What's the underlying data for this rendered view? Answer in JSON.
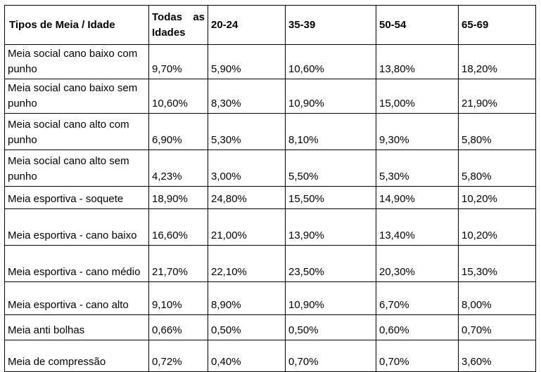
{
  "table": {
    "headers": {
      "type": "Tipos de Meia / Idade",
      "all_word1": "Todas",
      "all_word2": "as",
      "all_word3": "Idades",
      "a20": "20-24",
      "a35": "35-39",
      "a50": "50-54",
      "a65": "65-69"
    },
    "rows": [
      {
        "label": "Meia social cano baixo com punho",
        "all": "9,70%",
        "a20": "5,90%",
        "a35": "10,60%",
        "a50": "13,80%",
        "a65": "18,20%"
      },
      {
        "label": "Meia social cano baixo sem punho",
        "all": "10,60%",
        "a20": "8,30%",
        "a35": "10,90%",
        "a50": "15,00%",
        "a65": "21,90%"
      },
      {
        "label": "Meia social cano alto com punho",
        "all": "6,90%",
        "a20": "5,30%",
        "a35": "8,10%",
        "a50": "9,30%",
        "a65": "5,80%"
      },
      {
        "label": "Meia social cano alto sem punho",
        "all": "4,23%",
        "a20": "3,00%",
        "a35": "5,50%",
        "a50": "5,30%",
        "a65": "5,80%"
      },
      {
        "label": "Meia esportiva - soquete",
        "all": "18,90%",
        "a20": "24,80%",
        "a35": "15,50%",
        "a50": "14,90%",
        "a65": "10,20%"
      },
      {
        "label": "Meia esportiva - cano baixo",
        "all": "16,60%",
        "a20": "21,00%",
        "a35": "13,90%",
        "a50": "13,40%",
        "a65": "10,20%"
      },
      {
        "label": "Meia esportiva - cano médio",
        "all": "21,70%",
        "a20": "22,10%",
        "a35": "23,50%",
        "a50": "20,30%",
        "a65": "15,30%"
      },
      {
        "label": "Meia esportiva - cano alto",
        "all": "9,10%",
        "a20": "8,90%",
        "a35": "10,90%",
        "a50": "6,70%",
        "a65": "8,00%"
      },
      {
        "label": "Meia anti bolhas",
        "all": "0,66%",
        "a20": "0,50%",
        "a35": "0,50%",
        "a50": "0,60%",
        "a65": "0,70%"
      },
      {
        "label": "Meia de compressão",
        "all": "0,72%",
        "a20": "0,40%",
        "a35": "0,70%",
        "a50": "0,70%",
        "a65": "3,60%"
      }
    ]
  }
}
